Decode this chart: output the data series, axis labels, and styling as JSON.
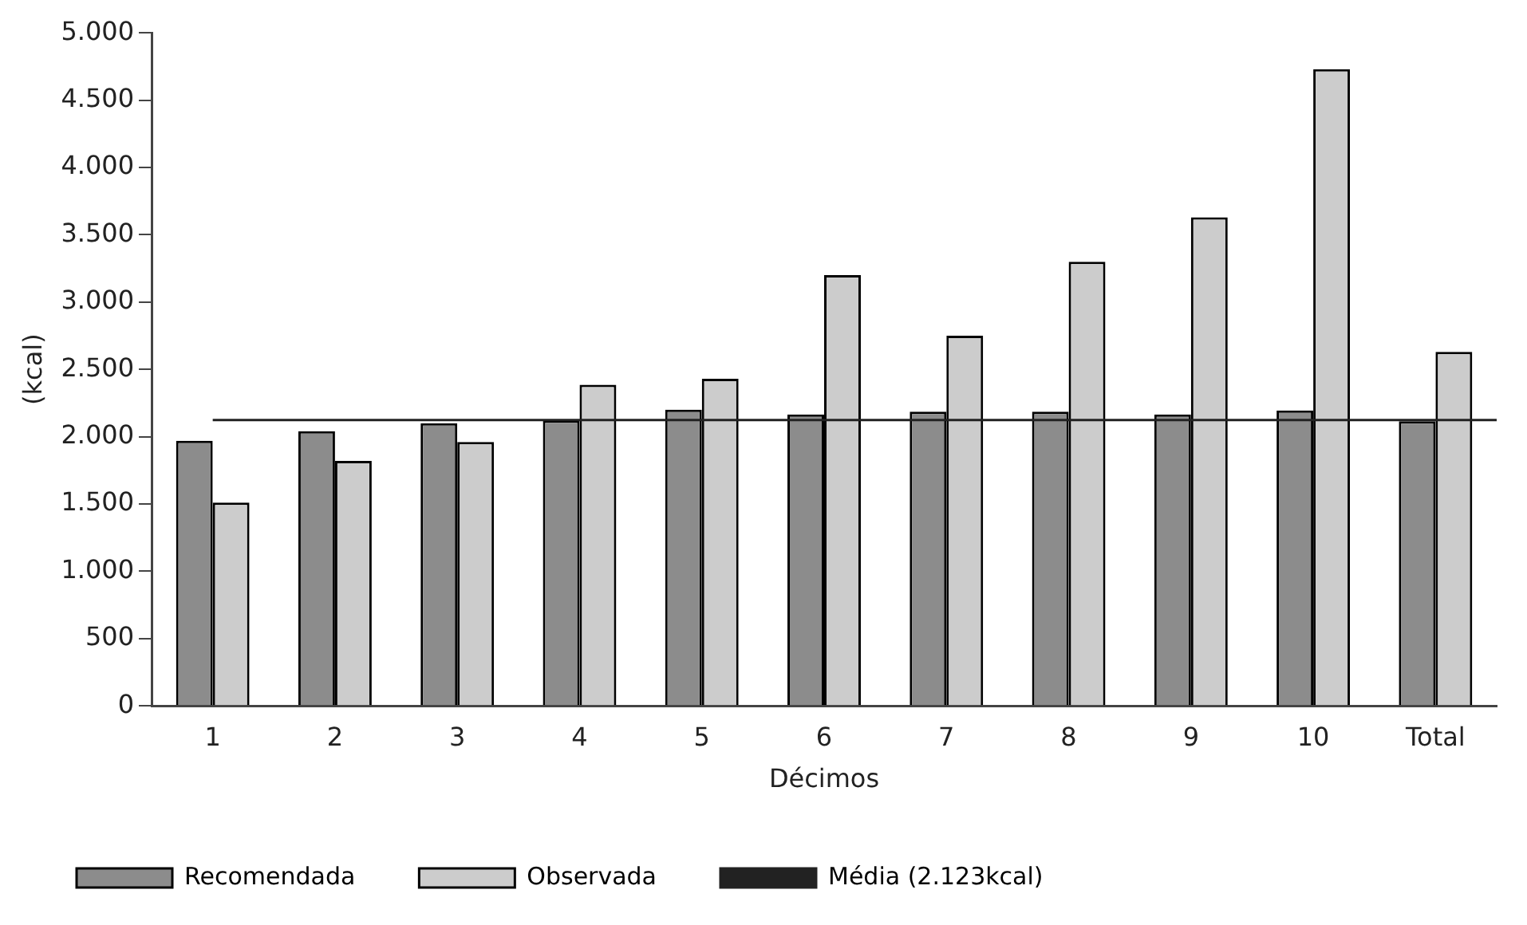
{
  "chart_data": {
    "type": "bar",
    "xlabel": "Décimos",
    "ylabel": "(kcal)",
    "categories": [
      "1",
      "2",
      "3",
      "4",
      "5",
      "6",
      "7",
      "8",
      "9",
      "10",
      "Total"
    ],
    "series": [
      {
        "name": "Recomendada",
        "color": "#8c8c8c",
        "values": [
          1970,
          2040,
          2100,
          2120,
          2200,
          2165,
          2185,
          2185,
          2165,
          2195,
          2115
        ]
      },
      {
        "name": "Observada",
        "color": "#cccccc",
        "values": [
          1510,
          1820,
          1960,
          2385,
          2430,
          3200,
          2750,
          3300,
          3630,
          4730,
          2630
        ]
      }
    ],
    "ylim": [
      0,
      5000
    ],
    "yticks": [
      {
        "value": 0,
        "label": "0"
      },
      {
        "value": 500,
        "label": "500"
      },
      {
        "value": 1000,
        "label": "1.000"
      },
      {
        "value": 1500,
        "label": "1.500"
      },
      {
        "value": 2000,
        "label": "2.000"
      },
      {
        "value": 2500,
        "label": "2.500"
      },
      {
        "value": 3000,
        "label": "3.000"
      },
      {
        "value": 3500,
        "label": "3.500"
      },
      {
        "value": 4000,
        "label": "4.000"
      },
      {
        "value": 4500,
        "label": "4.500"
      },
      {
        "value": 5000,
        "label": "5.000"
      }
    ],
    "ref_lines": [
      {
        "axis": "y",
        "value": 2123,
        "label": "Média (2.123kcal)",
        "color": "#222222",
        "line_style": "solid"
      }
    ],
    "grid": false,
    "legend": "bottom"
  }
}
